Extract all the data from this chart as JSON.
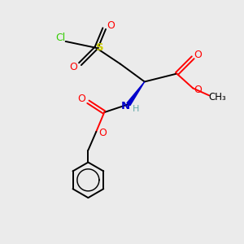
{
  "bg_color": "#ebebeb",
  "atom_colors": {
    "C": "#000000",
    "O": "#ff0000",
    "N": "#0000cc",
    "S": "#cccc00",
    "Cl": "#33cc00",
    "H": "#66aaaa"
  },
  "bond_color": "#000000",
  "figsize": [
    3.0,
    3.0
  ],
  "dpi": 100
}
